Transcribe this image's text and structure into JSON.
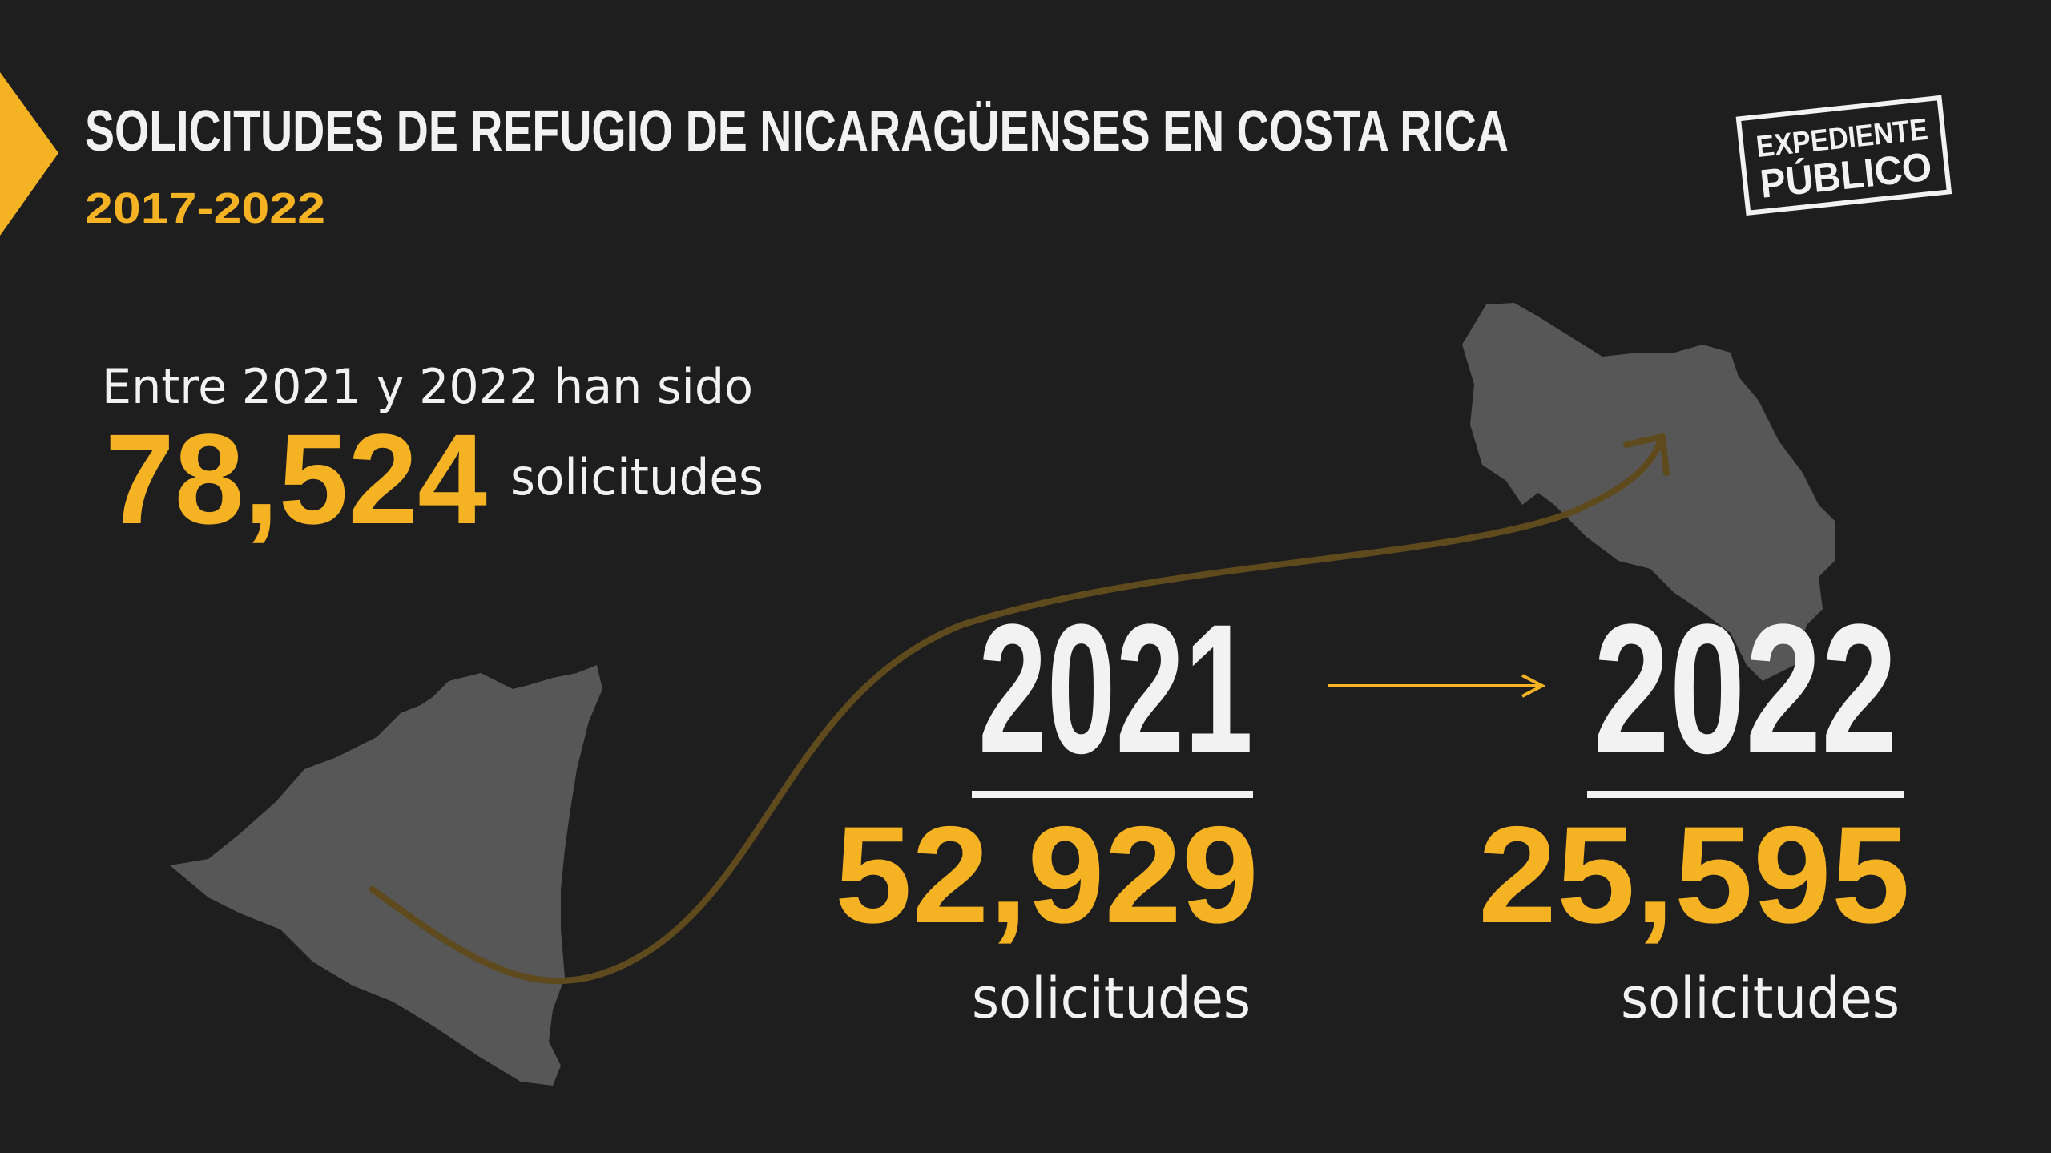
{
  "header": {
    "title": "SOLICITUDES DE REFUGIO DE NICARAGÜENSES EN COSTA RICA",
    "subtitle": "2017-2022"
  },
  "logo": {
    "line1": "EXPEDIENTE",
    "line2": "PÚBLICO"
  },
  "summary": {
    "intro": "Entre 2021 y 2022 han sido",
    "total": "78,524",
    "unit": "solicitudes"
  },
  "years": [
    {
      "year": "2021",
      "count": "52,929",
      "unit": "solicitudes"
    },
    {
      "year": "2022",
      "count": "25,595",
      "unit": "solicitudes"
    }
  ]
}
